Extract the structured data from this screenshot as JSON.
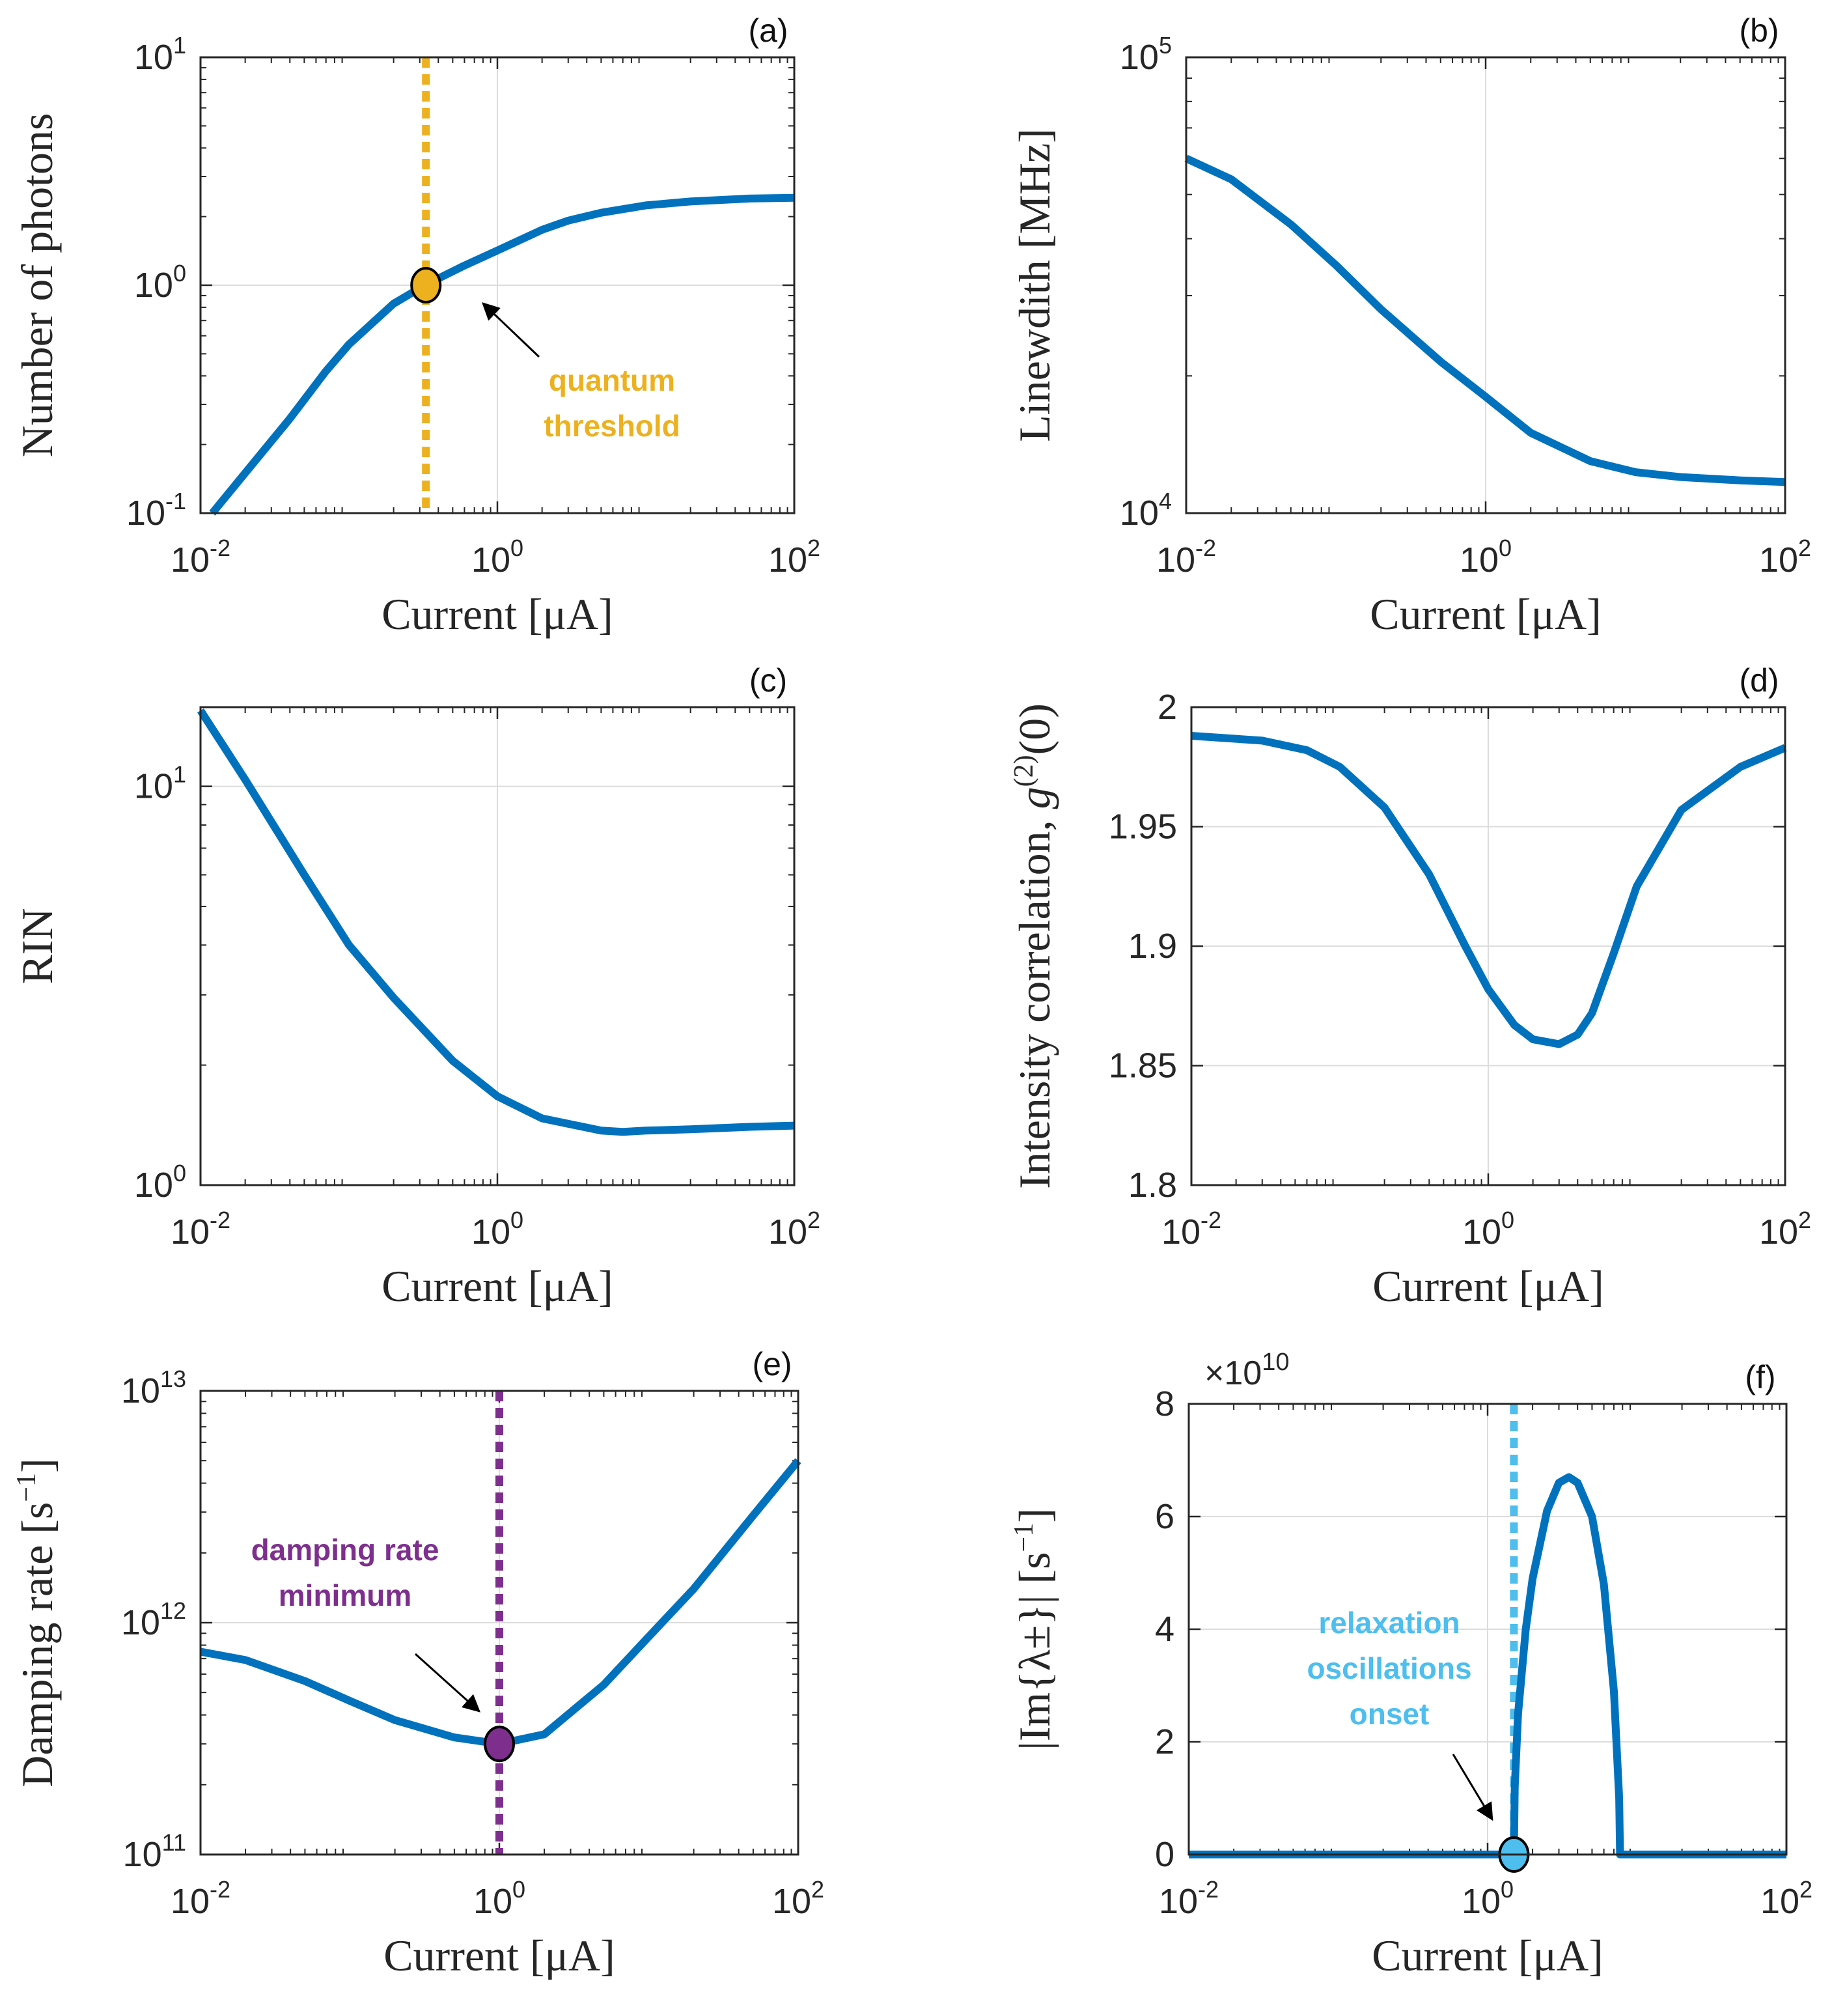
{
  "colors": {
    "curve": "#0072bd",
    "quantum": "#edb120",
    "damping": "#7e2f8e",
    "relax": "#4dbeee",
    "grid": "#dcdcdc",
    "axis": "#262626"
  },
  "chart_data": [
    {
      "id": "a",
      "type": "line",
      "panel_label": "(a)",
      "xlabel": "Current [μA]",
      "ylabel": "Number of photons",
      "xscale": "log",
      "yscale": "log",
      "xlim": [
        0.01,
        100
      ],
      "ylim": [
        0.1,
        10
      ],
      "xticks": [
        {
          "base": "10",
          "exp": "-2"
        },
        {
          "base": "10",
          "exp": "0"
        },
        {
          "base": "10",
          "exp": "2"
        }
      ],
      "yticks": [
        {
          "base": "10",
          "exp": "-1"
        },
        {
          "base": "10",
          "exp": "0"
        },
        {
          "base": "10",
          "exp": "1"
        }
      ],
      "series": [
        {
          "name": "photons",
          "x": [
            0.012,
            0.02,
            0.04,
            0.07,
            0.1,
            0.2,
            0.3,
            0.4,
            0.6,
            1,
            2,
            3,
            5,
            10,
            20,
            50,
            100
          ],
          "y": [
            0.1,
            0.15,
            0.26,
            0.42,
            0.55,
            0.83,
            0.97,
            1.07,
            1.22,
            1.42,
            1.75,
            1.92,
            2.08,
            2.24,
            2.33,
            2.4,
            2.42
          ]
        }
      ],
      "vline": {
        "x": 0.33,
        "style": "dotted",
        "color_key": "quantum"
      },
      "marker": {
        "x": 0.33,
        "y": 1.0,
        "color_key": "quantum"
      },
      "annotation": {
        "lines": [
          "quantum",
          "threshold"
        ],
        "color_key": "quantum"
      }
    },
    {
      "id": "b",
      "type": "line",
      "panel_label": "(b)",
      "xlabel": "Current [μA]",
      "ylabel": "Linewdith [MHz]",
      "xscale": "log",
      "yscale": "log",
      "xlim": [
        0.01,
        100
      ],
      "ylim": [
        10000,
        100000
      ],
      "xticks": [
        {
          "base": "10",
          "exp": "-2"
        },
        {
          "base": "10",
          "exp": "0"
        },
        {
          "base": "10",
          "exp": "2"
        }
      ],
      "yticks": [
        {
          "base": "10",
          "exp": "4"
        },
        {
          "base": "10",
          "exp": "5"
        }
      ],
      "series": [
        {
          "name": "linewidth",
          "x": [
            0.01,
            0.02,
            0.05,
            0.1,
            0.2,
            0.5,
            1,
            2,
            5,
            10,
            20,
            50,
            100
          ],
          "y": [
            60000,
            54000,
            43000,
            35000,
            28000,
            21500,
            18000,
            15000,
            13000,
            12300,
            12000,
            11800,
            11700
          ]
        }
      ]
    },
    {
      "id": "c",
      "type": "line",
      "panel_label": "(c)",
      "xlabel": "Current [μA]",
      "ylabel": "RIN",
      "xscale": "log",
      "yscale": "log",
      "xlim": [
        0.01,
        100
      ],
      "ylim": [
        1,
        15.8
      ],
      "xticks": [
        {
          "base": "10",
          "exp": "-2"
        },
        {
          "base": "10",
          "exp": "0"
        },
        {
          "base": "10",
          "exp": "2"
        }
      ],
      "yticks": [
        {
          "base": "10",
          "exp": "0"
        },
        {
          "base": "10",
          "exp": "1"
        }
      ],
      "series": [
        {
          "name": "RIN",
          "x": [
            0.01,
            0.02,
            0.05,
            0.1,
            0.2,
            0.5,
            1,
            2,
            5,
            7,
            10,
            20,
            50,
            100
          ],
          "y": [
            15.5,
            10.4,
            6.0,
            4.0,
            2.95,
            2.05,
            1.67,
            1.47,
            1.37,
            1.36,
            1.37,
            1.38,
            1.4,
            1.41
          ]
        }
      ]
    },
    {
      "id": "d",
      "type": "line",
      "panel_label": "(d)",
      "xlabel": "Current [μA]",
      "ylabel": "Intensity correlation, ",
      "ylabel_math": "g(2)(0)",
      "xscale": "log",
      "yscale": "linear",
      "xlim": [
        0.01,
        100
      ],
      "ylim": [
        1.8,
        2.0
      ],
      "xticks": [
        {
          "base": "10",
          "exp": "-2"
        },
        {
          "base": "10",
          "exp": "0"
        },
        {
          "base": "10",
          "exp": "2"
        }
      ],
      "yticks": [
        {
          "label": "1.8",
          "v": 1.8
        },
        {
          "label": "1.85",
          "v": 1.85
        },
        {
          "label": "1.9",
          "v": 1.9
        },
        {
          "label": "1.95",
          "v": 1.95
        },
        {
          "label": "2",
          "v": 2.0
        }
      ],
      "series": [
        {
          "name": "g2",
          "x": [
            0.01,
            0.03,
            0.06,
            0.1,
            0.2,
            0.4,
            0.7,
            1,
            1.5,
            2,
            3,
            4,
            5,
            7,
            10,
            20,
            50,
            100
          ],
          "y": [
            1.988,
            1.986,
            1.982,
            1.975,
            1.958,
            1.93,
            1.9,
            1.882,
            1.867,
            1.861,
            1.859,
            1.863,
            1.872,
            1.897,
            1.925,
            1.957,
            1.975,
            1.983
          ]
        }
      ]
    },
    {
      "id": "e",
      "type": "line",
      "panel_label": "(e)",
      "xlabel": "Current [μA]",
      "ylabel": "Damping rate [s",
      "ylabel_sup": "−1",
      "ylabel_end": "]",
      "xscale": "log",
      "yscale": "log",
      "xlim": [
        0.01,
        100
      ],
      "ylim": [
        100000000000.0,
        10000000000000.0
      ],
      "xticks": [
        {
          "base": "10",
          "exp": "-2"
        },
        {
          "base": "10",
          "exp": "0"
        },
        {
          "base": "10",
          "exp": "2"
        }
      ],
      "yticks": [
        {
          "base": "10",
          "exp": "11"
        },
        {
          "base": "10",
          "exp": "12"
        },
        {
          "base": "10",
          "exp": "13"
        }
      ],
      "series": [
        {
          "name": "damping",
          "x": [
            0.01,
            0.02,
            0.05,
            0.1,
            0.2,
            0.5,
            1,
            2,
            5,
            10,
            20,
            50,
            100
          ],
          "y": [
            750000000000.0,
            690000000000.0,
            560000000000.0,
            460000000000.0,
            380000000000.0,
            320000000000.0,
            300000000000.0,
            330000000000.0,
            540000000000.0,
            870000000000.0,
            1400000000000.0,
            2900000000000.0,
            5000000000000.0
          ]
        }
      ],
      "vline": {
        "x": 1.0,
        "style": "dotted",
        "color_key": "damping"
      },
      "marker": {
        "x": 1.0,
        "y": 300000000000.0,
        "color_key": "damping"
      },
      "annotation": {
        "lines": [
          "damping rate",
          "minimum"
        ],
        "color_key": "damping"
      }
    },
    {
      "id": "f",
      "type": "line",
      "panel_label": "(f)",
      "xlabel": "Current [μA]",
      "ylabel": "|Im{λ±}| [s",
      "ylabel_sup": "−1",
      "ylabel_end": "]",
      "xscale": "log",
      "yscale": "linear",
      "xlim": [
        0.01,
        100
      ],
      "ylim": [
        0,
        8
      ],
      "exponent_label": {
        "prefix": "×10",
        "exp": "10"
      },
      "xticks": [
        {
          "base": "10",
          "exp": "-2"
        },
        {
          "base": "10",
          "exp": "0"
        },
        {
          "base": "10",
          "exp": "2"
        }
      ],
      "yticks": [
        {
          "label": "0",
          "v": 0
        },
        {
          "label": "2",
          "v": 2
        },
        {
          "label": "4",
          "v": 4
        },
        {
          "label": "6",
          "v": 6
        },
        {
          "label": "8",
          "v": 8
        }
      ],
      "series": [
        {
          "name": "im_lambda",
          "x": [
            0.01,
            1.5,
            1.52,
            1.6,
            1.8,
            2.0,
            2.5,
            3.0,
            3.5,
            4.0,
            5.0,
            6.0,
            7.0,
            7.6,
            7.7,
            100
          ],
          "y": [
            0,
            0,
            1.2,
            2.5,
            4.0,
            4.9,
            6.1,
            6.6,
            6.7,
            6.6,
            6.0,
            4.8,
            2.9,
            1.0,
            0,
            0
          ]
        }
      ],
      "vline": {
        "x": 1.5,
        "style": "dotted",
        "color_key": "relax"
      },
      "marker": {
        "x": 1.5,
        "y": 0,
        "color_key": "relax"
      },
      "annotation": {
        "lines": [
          "relaxation",
          "oscillations",
          "onset"
        ],
        "color_key": "relax"
      }
    }
  ]
}
